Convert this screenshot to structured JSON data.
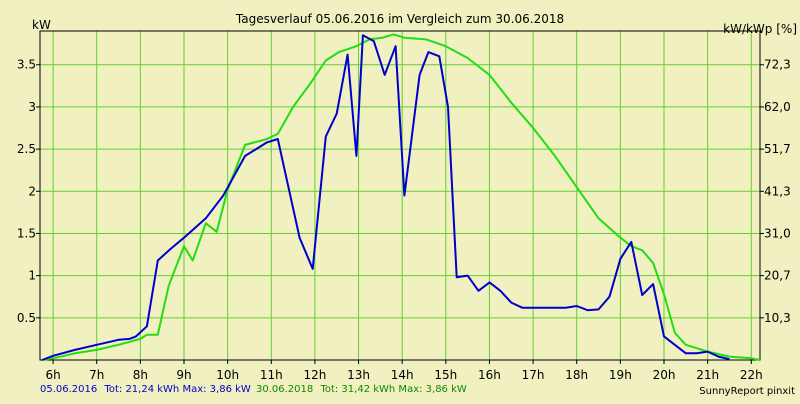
{
  "chart_data": {
    "type": "line",
    "title": "Tagesverlauf 05.06.2016 im Vergleich zum 30.06.2018",
    "ylabel": "kW",
    "y2label": "kW/kWp [%]",
    "xlim": [
      5.7,
      22.2
    ],
    "ylim": [
      0,
      3.9
    ],
    "grid": true,
    "x_ticks": [
      6,
      7,
      8,
      9,
      10,
      11,
      12,
      13,
      14,
      15,
      16,
      17,
      18,
      19,
      20,
      21,
      22
    ],
    "x_tick_labels": [
      "6h",
      "7h",
      "8h",
      "9h",
      "10h",
      "11h",
      "12h",
      "13h",
      "14h",
      "15h",
      "16h",
      "17h",
      "18h",
      "19h",
      "20h",
      "21h",
      "22h"
    ],
    "y_ticks": [
      0.5,
      1,
      1.5,
      2,
      2.5,
      3,
      3.5
    ],
    "y_tick_labels": [
      "0.5",
      "1",
      "1.5",
      "2",
      "2.5",
      "3",
      "3.5"
    ],
    "y2_ticks": [
      0.5,
      1,
      1.5,
      2,
      2.5,
      3,
      3.5
    ],
    "y2_tick_labels": [
      "10,3",
      "20,7",
      "31,0",
      "41,3",
      "51,7",
      "62,0",
      "72,3"
    ],
    "series": [
      {
        "name": "05.06.2016",
        "color": "#0000cc",
        "x": [
          5.75,
          6.0,
          6.5,
          7.0,
          7.5,
          7.75,
          7.9,
          8.15,
          8.4,
          8.7,
          9.0,
          9.5,
          9.9,
          10.4,
          10.9,
          11.15,
          11.65,
          11.95,
          12.25,
          12.5,
          12.75,
          12.95,
          13.1,
          13.35,
          13.6,
          13.85,
          14.05,
          14.4,
          14.6,
          14.85,
          15.05,
          15.25,
          15.5,
          15.75,
          16.0,
          16.25,
          16.5,
          16.75,
          17.0,
          17.5,
          17.75,
          18.0,
          18.25,
          18.5,
          18.75,
          19.0,
          19.25,
          19.5,
          19.75,
          20.0,
          20.5,
          20.75,
          21.0,
          21.25,
          21.5
        ],
        "values": [
          0.0,
          0.05,
          0.12,
          0.18,
          0.24,
          0.25,
          0.28,
          0.4,
          1.18,
          1.32,
          1.45,
          1.68,
          1.95,
          2.42,
          2.58,
          2.62,
          1.45,
          1.08,
          2.65,
          2.92,
          3.62,
          2.42,
          3.85,
          3.78,
          3.38,
          3.72,
          1.95,
          3.38,
          3.65,
          3.6,
          3.0,
          0.98,
          1.0,
          0.82,
          0.92,
          0.82,
          0.68,
          0.62,
          0.62,
          0.62,
          0.62,
          0.64,
          0.59,
          0.6,
          0.75,
          1.2,
          1.4,
          0.77,
          0.9,
          0.28,
          0.08,
          0.08,
          0.1,
          0.04,
          0.01
        ]
      },
      {
        "name": "30.06.2018",
        "color": "#22dd11",
        "x": [
          5.75,
          6.0,
          6.5,
          7.0,
          7.5,
          8.0,
          8.15,
          8.4,
          8.65,
          9.0,
          9.2,
          9.5,
          9.75,
          10.0,
          10.4,
          10.9,
          11.15,
          11.5,
          11.9,
          12.25,
          12.55,
          12.95,
          13.25,
          13.55,
          13.8,
          14.05,
          14.55,
          15.0,
          15.5,
          16.0,
          16.5,
          17.0,
          17.5,
          18.0,
          18.5,
          19.0,
          19.25,
          19.5,
          19.75,
          20.0,
          20.25,
          20.5,
          21.0,
          21.5,
          22.0,
          22.2
        ],
        "values": [
          0.0,
          0.02,
          0.08,
          0.12,
          0.18,
          0.25,
          0.3,
          0.3,
          0.88,
          1.35,
          1.18,
          1.62,
          1.52,
          2.02,
          2.55,
          2.62,
          2.68,
          3.0,
          3.28,
          3.55,
          3.65,
          3.72,
          3.8,
          3.82,
          3.86,
          3.82,
          3.8,
          3.72,
          3.58,
          3.38,
          3.05,
          2.75,
          2.42,
          2.05,
          1.68,
          1.45,
          1.35,
          1.3,
          1.15,
          0.78,
          0.32,
          0.18,
          0.1,
          0.04,
          0.02,
          0.0
        ]
      }
    ]
  },
  "footer": {
    "s1_date": "05.06.2016",
    "s1_stats": "Tot: 21,24 kWh Max: 3,86 kW",
    "s2_date": "30.06.2018",
    "s2_stats": "Tot: 31,42 kWh Max: 3,86 kW",
    "brand": "SunnyReport pinxit"
  }
}
